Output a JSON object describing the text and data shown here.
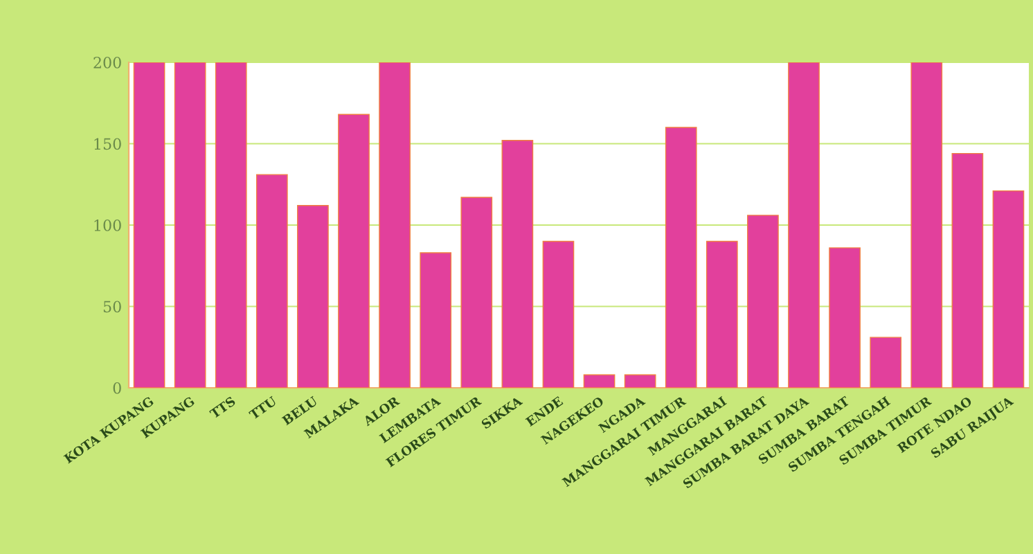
{
  "chart_data": {
    "type": "bar",
    "categories": [
      "KOTA KUPANG",
      "KUPANG",
      "TTS",
      "TTU",
      "BELU",
      "MALAKA",
      "ALOR",
      "LEMBATA",
      "FLORES TIMUR",
      "SIKKA",
      "ENDE",
      "NAGEKEO",
      "NGADA",
      "MANGGARAI TIMUR",
      "MANGGARAI",
      "MANGGARAI BARAT",
      "SUMBA BARAT DAYA",
      "SUMBA BARAT",
      "SUMBA TENGAH",
      "SUMBA TIMUR",
      "ROTE NDAO",
      "SABU RAIJUA"
    ],
    "values": [
      200,
      200,
      200,
      131,
      112,
      168,
      200,
      83,
      117,
      152,
      90,
      8,
      8,
      160,
      90,
      106,
      200,
      86,
      31,
      200,
      144,
      121
    ],
    "color": "#e2409c",
    "ylim": [
      0,
      200
    ],
    "yticks": [
      0,
      50,
      100,
      150,
      200
    ],
    "grid": "y"
  }
}
